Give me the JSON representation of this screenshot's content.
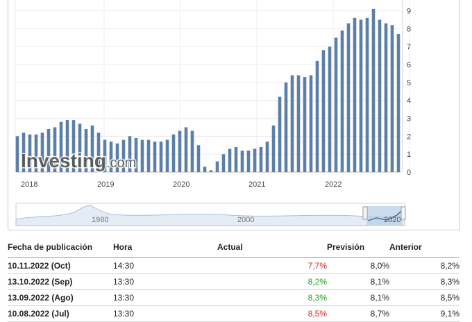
{
  "chart_data": {
    "type": "bar",
    "watermark": {
      "brand": "Investing",
      "suffix": ".com"
    },
    "y_ticks": [
      0,
      1,
      2,
      3,
      4,
      5,
      6,
      7,
      8,
      9
    ],
    "ylim": [
      0,
      9.6
    ],
    "x_labels": [
      "2018",
      "2019",
      "2020",
      "2021",
      "2022"
    ],
    "values": [
      2.0,
      2.2,
      2.1,
      2.1,
      2.2,
      2.4,
      2.5,
      2.8,
      2.9,
      2.9,
      2.7,
      2.4,
      2.6,
      2.2,
      1.8,
      1.7,
      1.6,
      1.8,
      2.0,
      1.9,
      1.8,
      1.8,
      1.7,
      1.7,
      1.8,
      2.1,
      2.3,
      2.5,
      2.3,
      1.5,
      0.3,
      0.1,
      0.6,
      1.0,
      1.3,
      1.4,
      1.2,
      1.2,
      1.3,
      1.4,
      1.7,
      2.6,
      4.2,
      5.0,
      5.4,
      5.4,
      5.3,
      5.4,
      6.2,
      6.8,
      7.0,
      7.5,
      7.9,
      8.3,
      8.6,
      8.5,
      8.6,
      9.1,
      8.5,
      8.3,
      8.2,
      7.7
    ],
    "navigator": {
      "labels": [
        "1980",
        "2000",
        "2020"
      ]
    }
  },
  "table": {
    "headers": {
      "date": "Fecha de publicación",
      "time": "Hora",
      "actual": "Actual",
      "forecast": "Previsión",
      "previous": "Anterior"
    },
    "rows": [
      {
        "date": "10.11.2022 (Oct)",
        "time": "14:30",
        "actual": "7,7%",
        "forecast": "8,0%",
        "previous": "8,2%",
        "actual_color": "red"
      },
      {
        "date": "13.10.2022 (Sep)",
        "time": "13:30",
        "actual": "8,2%",
        "forecast": "8,1%",
        "previous": "8,3%",
        "actual_color": "green"
      },
      {
        "date": "13.09.2022 (Ago)",
        "time": "13:30",
        "actual": "8,3%",
        "forecast": "8,1%",
        "previous": "8,5%",
        "actual_color": "green"
      },
      {
        "date": "10.08.2022 (Jul)",
        "time": "13:30",
        "actual": "8,5%",
        "forecast": "8,7%",
        "previous": "9,1%",
        "actual_color": "red"
      }
    ]
  }
}
